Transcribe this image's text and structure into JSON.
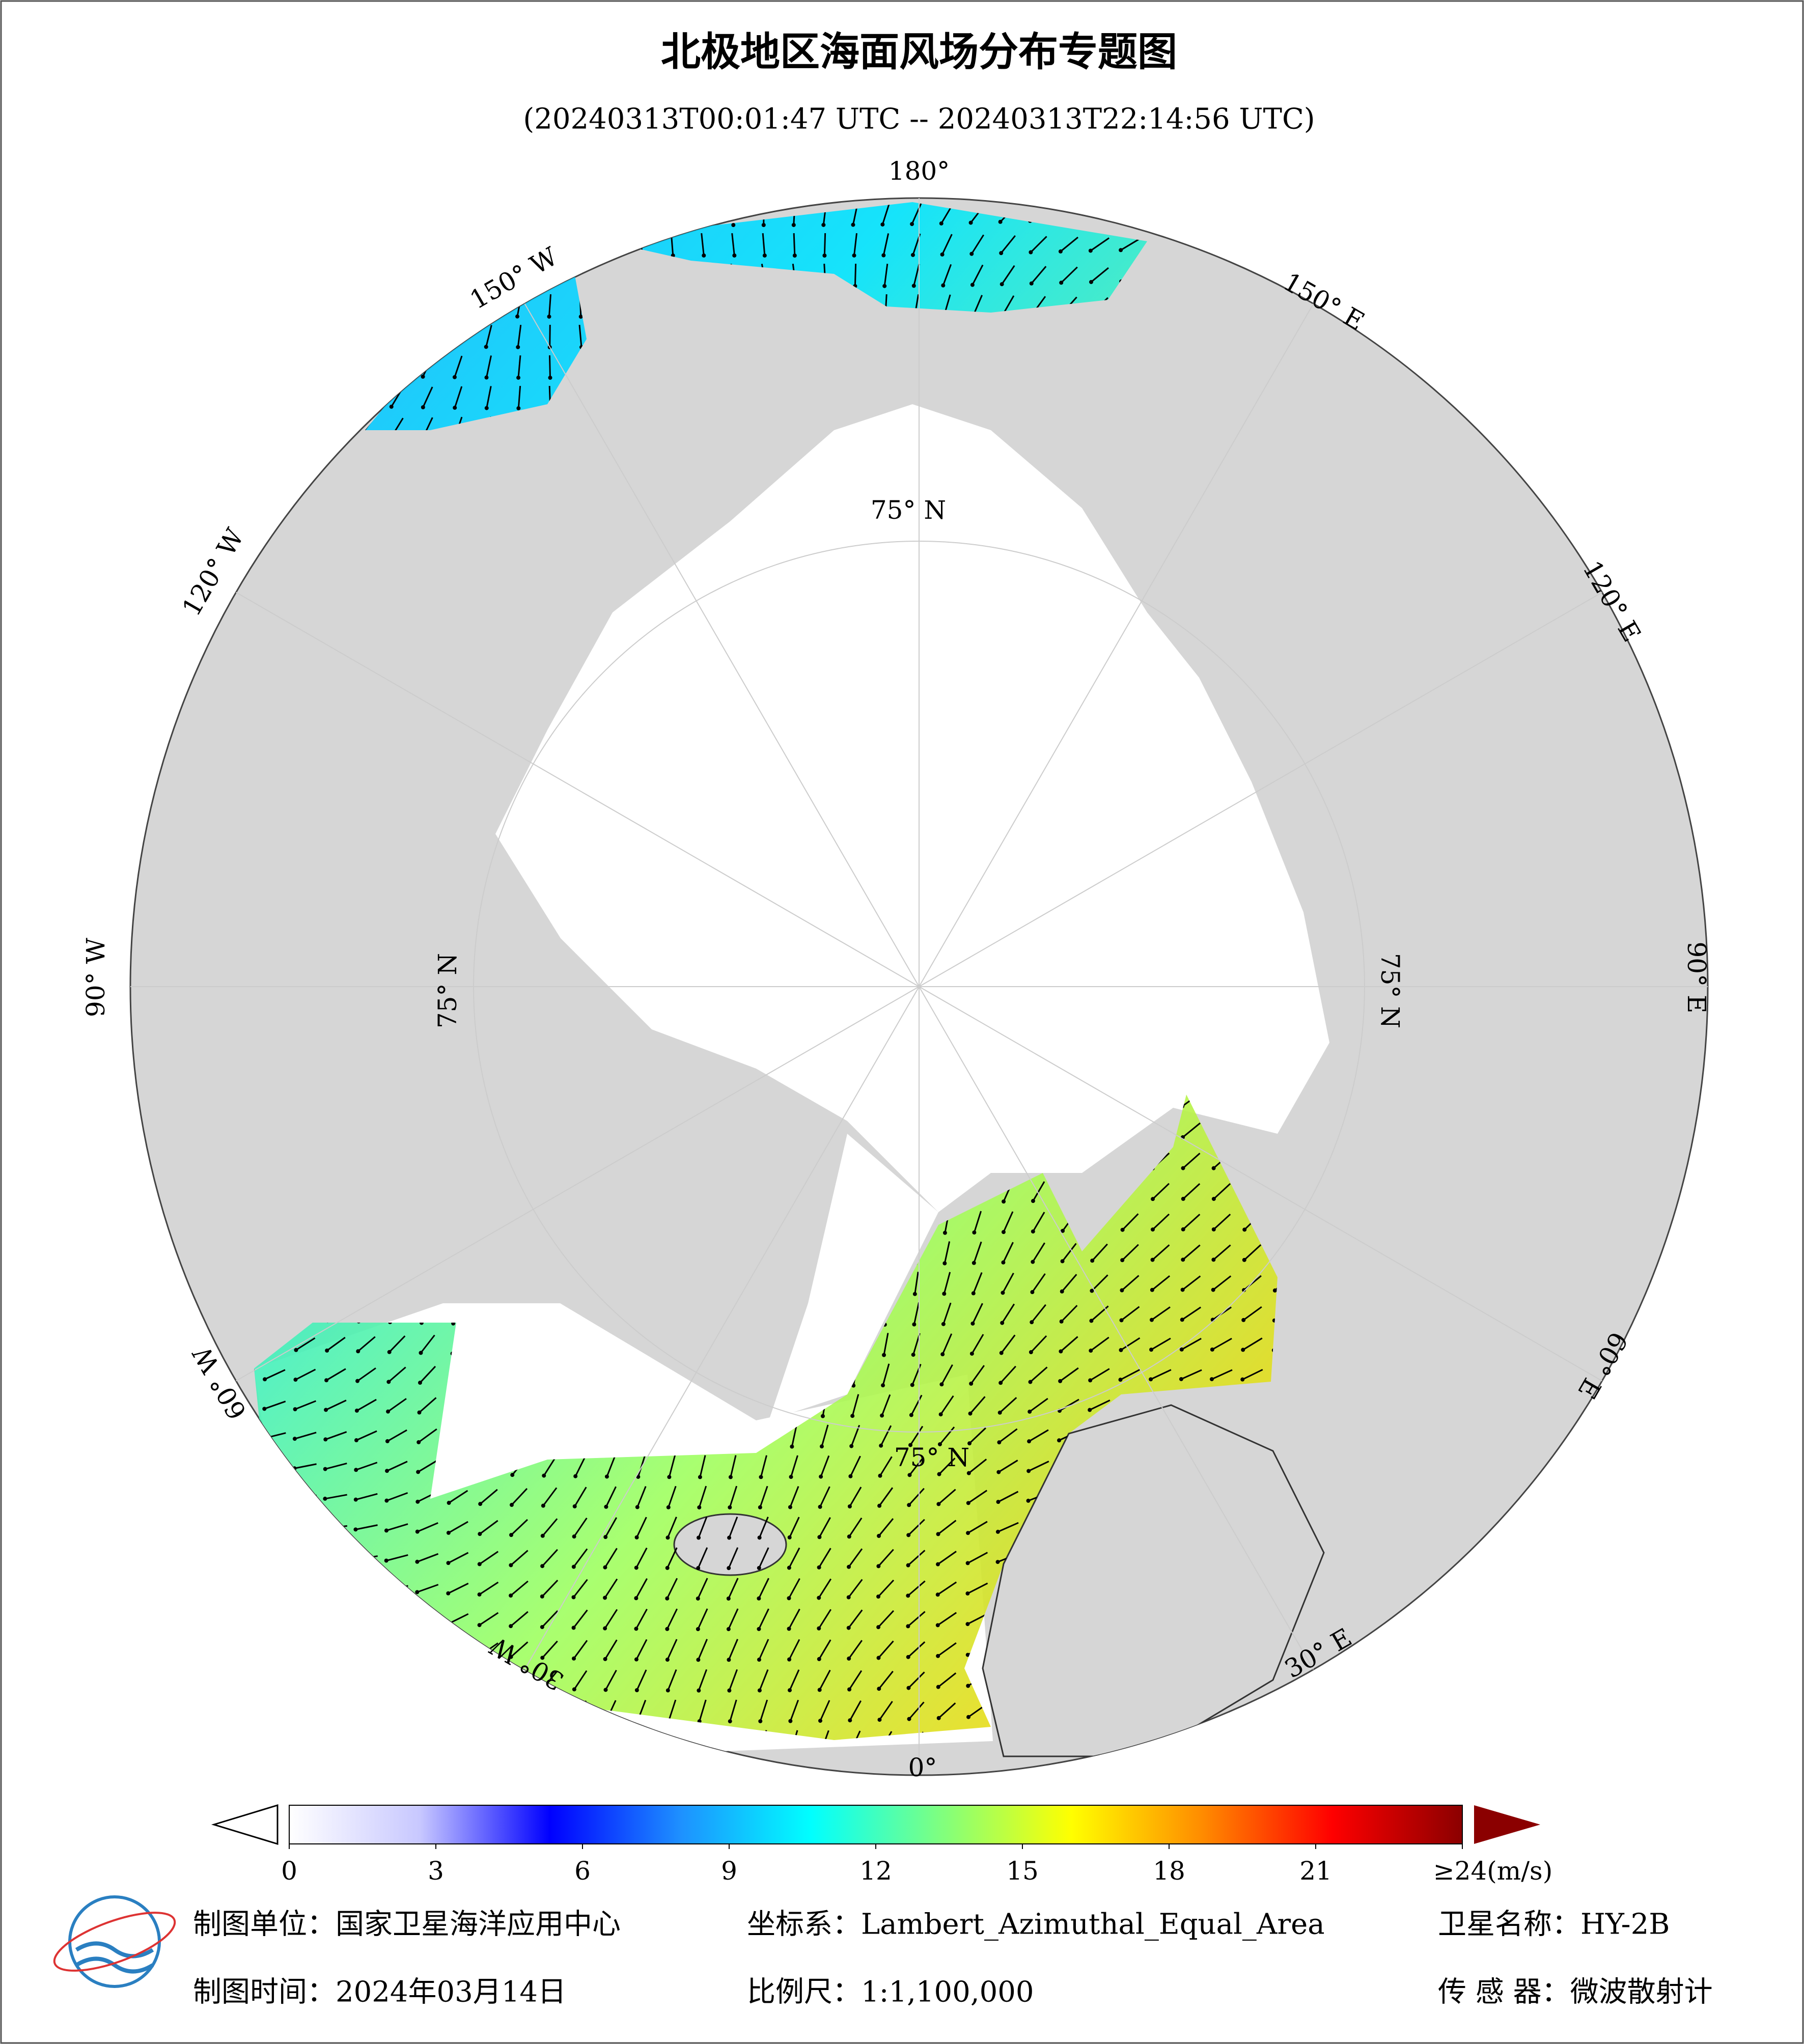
{
  "header": {
    "title": "北极地区海面风场分布专题图",
    "subtitle": "(20240313T00:01:47 UTC -- 20240313T22:14:56 UTC)"
  },
  "map": {
    "lon_labels": [
      "180°",
      "150° E",
      "120° E",
      "90° E",
      "60° E",
      "30° E",
      "0°",
      "30° W",
      "60° W",
      "90° W",
      "120° W",
      "150° W"
    ],
    "lat_labels": [
      "75° N",
      "75° N",
      "75° N",
      "75° N"
    ]
  },
  "colorbar": {
    "range": [
      0,
      24
    ],
    "ticks": [
      0,
      3,
      6,
      9,
      12,
      15,
      18,
      21,
      {
        "value": 24,
        "label": "≥24(m/s)"
      }
    ],
    "colors": [
      "#ffffff",
      "#c8c8ff",
      "#0000ff",
      "#1e90ff",
      "#00ffff",
      "#7fff7f",
      "#ffff00",
      "#ff8c00",
      "#ff0000",
      "#8b0000"
    ]
  },
  "footer": {
    "unit": "制图单位：国家卫星海洋应用中心",
    "coord": "坐标系：Lambert_Azimuthal_Equal_Area",
    "satellite": "卫星名称：HY-2B",
    "date": "制图时间：2024年03月14日",
    "scale": "比例尺：1:1,100,000",
    "sensor": "传 感 器：微波散射计"
  }
}
